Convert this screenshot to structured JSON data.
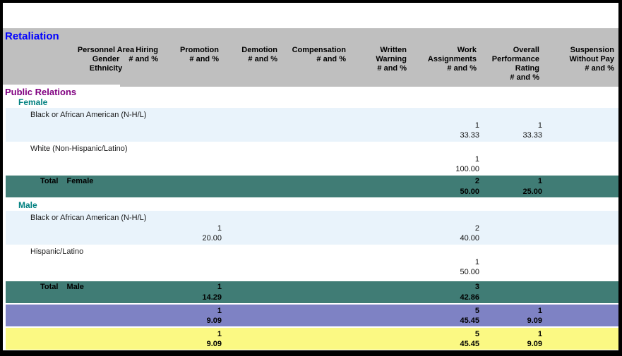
{
  "report": {
    "title": "Retaliation",
    "group": "Public Relations",
    "row_header": "Personnel Area\nGender\nEthnicity",
    "columns": [
      {
        "key": "hiring",
        "label": "Hiring\n# and %"
      },
      {
        "key": "promotion",
        "label": "Promotion\n# and %"
      },
      {
        "key": "demotion",
        "label": "Demotion\n# and %"
      },
      {
        "key": "compensation",
        "label": "Compensation\n# and %"
      },
      {
        "key": "written-warning",
        "label": "Written\nWarning\n# and %"
      },
      {
        "key": "work-assignments",
        "label": "Work\nAssignments\n# and %"
      },
      {
        "key": "overall-performance",
        "label": "Overall\nPerformance\nRating\n# and %"
      },
      {
        "key": "suspension-without-pay",
        "label": "Suspension\nWithout Pay\n# and %"
      }
    ],
    "sections": [
      {
        "gender": "Female",
        "rows": [
          {
            "ethnicity": "Black or African American (N-H/L)",
            "values": [
              null,
              null,
              null,
              null,
              null,
              [
                "1",
                "33.33"
              ],
              [
                "1",
                "33.33"
              ],
              null
            ]
          },
          {
            "ethnicity": "White (Non-Hispanic/Latino)",
            "values": [
              null,
              null,
              null,
              null,
              null,
              [
                "1",
                "100.00"
              ],
              null,
              null
            ]
          }
        ],
        "total": {
          "label": "Total",
          "values": [
            null,
            null,
            null,
            null,
            null,
            [
              "2",
              "50.00"
            ],
            [
              "1",
              "25.00"
            ],
            null
          ]
        }
      },
      {
        "gender": "Male",
        "rows": [
          {
            "ethnicity": "Black or African American (N-H/L)",
            "values": [
              null,
              [
                "1",
                "20.00"
              ],
              null,
              null,
              null,
              [
                "2",
                "40.00"
              ],
              null,
              null
            ]
          },
          {
            "ethnicity": "Hispanic/Latino",
            "values": [
              null,
              null,
              null,
              null,
              null,
              [
                "1",
                "50.00"
              ],
              null,
              null
            ]
          }
        ],
        "total": {
          "label": "Total",
          "values": [
            null,
            [
              "1",
              "14.29"
            ],
            null,
            null,
            null,
            [
              "3",
              "42.86"
            ],
            null,
            null
          ]
        }
      }
    ],
    "totals": [
      {
        "name": "group-total",
        "values": [
          null,
          [
            "1",
            "9.09"
          ],
          null,
          null,
          null,
          [
            "5",
            "45.45"
          ],
          [
            "1",
            "9.09"
          ],
          null
        ]
      },
      {
        "name": "report-total",
        "values": [
          null,
          [
            "1",
            "9.09"
          ],
          null,
          null,
          null,
          [
            "5",
            "45.45"
          ],
          [
            "1",
            "9.09"
          ],
          null
        ]
      }
    ]
  },
  "colors": {
    "title": "#0000ff",
    "group": "#800080",
    "gender": "#008080",
    "header_bg": "#bfbfbf",
    "row_alt_bg": "#e9f3fb",
    "total_bg": "#407c75",
    "group_total_bg": "#7e82c4",
    "report_total_bg": "#fbf983"
  }
}
